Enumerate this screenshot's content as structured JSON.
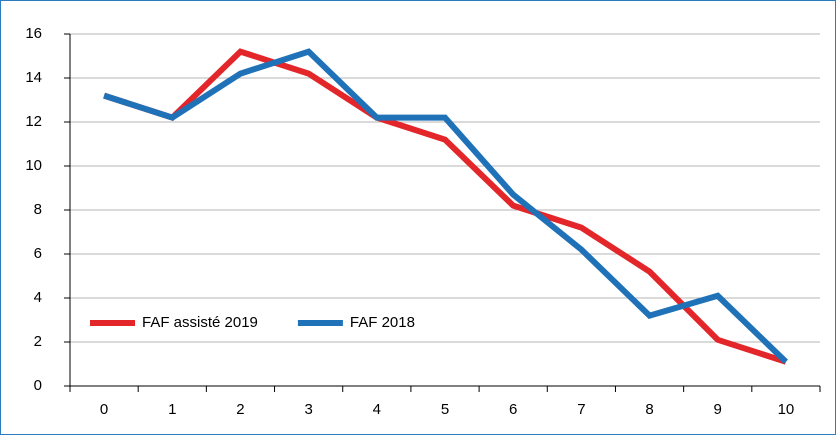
{
  "chart_data": {
    "type": "line",
    "categories": [
      0,
      1,
      2,
      3,
      4,
      5,
      6,
      7,
      8,
      9,
      10
    ],
    "series": [
      {
        "name": "FAF assisté 2019",
        "color": "#e3262a",
        "values": [
          13.2,
          12.2,
          15.2,
          14.2,
          12.2,
          11.2,
          8.2,
          7.2,
          5.2,
          2.1,
          1.1
        ]
      },
      {
        "name": "FAF 2018",
        "color": "#1f72b8",
        "values": [
          13.2,
          12.2,
          14.2,
          15.2,
          12.2,
          12.2,
          8.7,
          6.2,
          3.2,
          4.1,
          1.1
        ]
      }
    ],
    "ylim": [
      0,
      16
    ],
    "yticks": [
      0,
      2,
      4,
      6,
      8,
      10,
      12,
      14,
      16
    ],
    "grid": true,
    "legend": "lower left"
  }
}
